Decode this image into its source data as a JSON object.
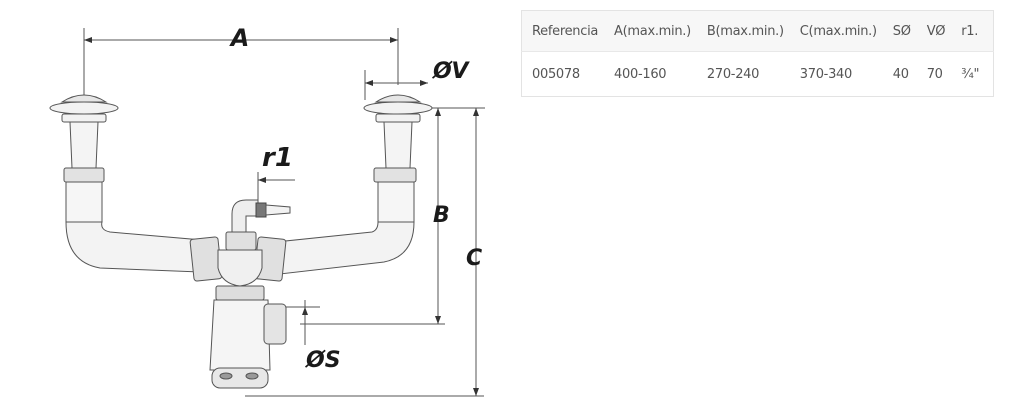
{
  "diagram": {
    "labels": {
      "a": "A",
      "b": "B",
      "c": "C",
      "v": "ØV",
      "s": "ØS",
      "r1": "r1"
    }
  },
  "table": {
    "headers": [
      "Referencia",
      "A(max.min.)",
      "B(max.min.)",
      "C(max.min.)",
      "SØ",
      "VØ",
      "r1."
    ],
    "rows": [
      [
        "005078",
        "400-160",
        "270-240",
        "370-340",
        "40",
        "70",
        "¾\""
      ]
    ]
  }
}
